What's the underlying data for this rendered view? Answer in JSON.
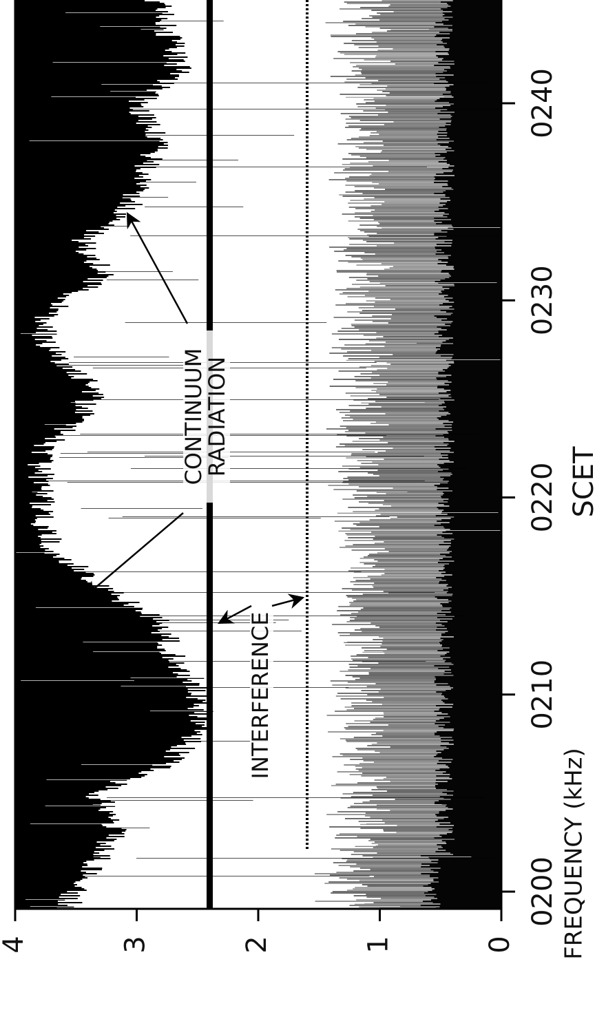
{
  "chart_data": {
    "type": "spectrogram",
    "xlabel": "SCET",
    "ylabel": "FREQUENCY (kHz)",
    "xlim": [
      -0.9,
      45.3
    ],
    "xticks": [
      {
        "value": 0,
        "label": "0200"
      },
      {
        "value": 10,
        "label": "0210"
      },
      {
        "value": 20,
        "label": "0220"
      },
      {
        "value": 30,
        "label": "0230"
      },
      {
        "value": 40,
        "label": "0240"
      }
    ],
    "ylim": [
      0,
      4
    ],
    "yticks": [
      0,
      1,
      2,
      3,
      4
    ],
    "annotations": [
      {
        "lines": [
          "CONTINUUM",
          "RADIATION"
        ]
      },
      {
        "lines": [
          "INTERFERENCE"
        ]
      }
    ]
  }
}
